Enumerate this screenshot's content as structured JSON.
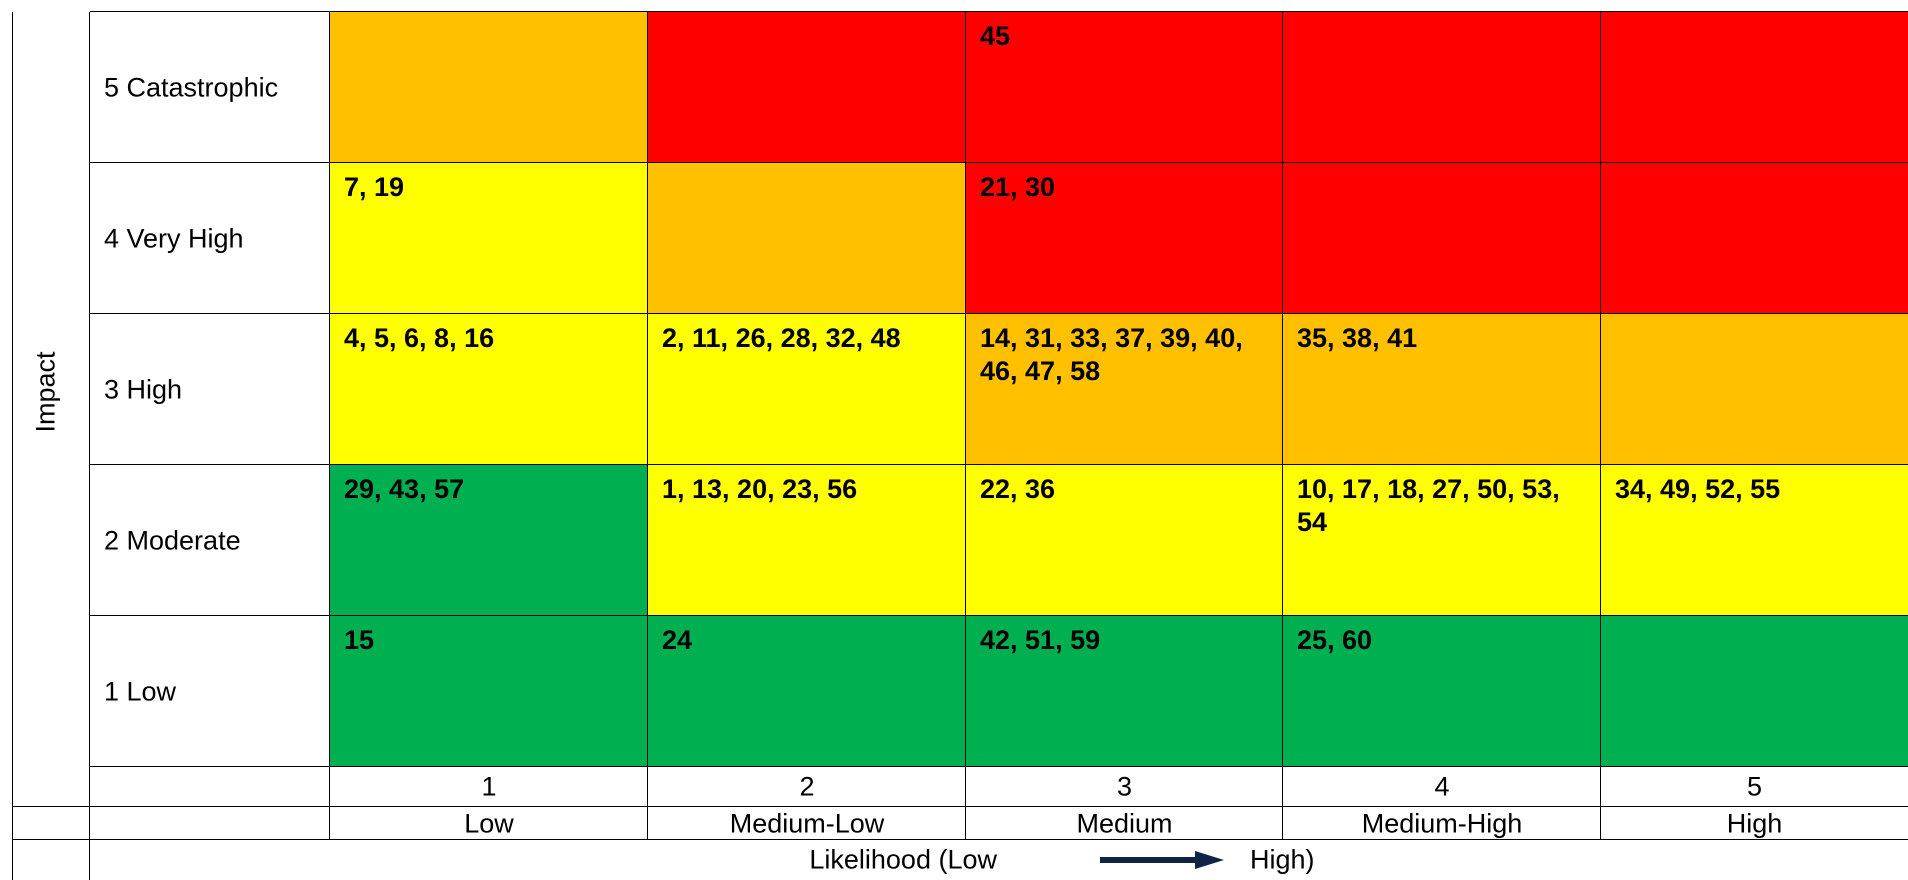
{
  "colors": {
    "red": "#FF0000",
    "orange": "#FFC000",
    "yellow": "#FFFF00",
    "green": "#00B050",
    "arrow": "#0F2346"
  },
  "chart_data": {
    "type": "heatmap",
    "y_axis_label": "Impact",
    "x_axis_label_prefix": "Likelihood (Low",
    "x_axis_label_suffix": "High)",
    "impact_levels": [
      "5 Catastrophic",
      "4 Very High",
      "3 High",
      "2 Moderate",
      "1 Low"
    ],
    "likelihood_numbers": [
      "1",
      "2",
      "3",
      "4",
      "5"
    ],
    "likelihood_levels": [
      "Low",
      "Medium-Low",
      "Medium",
      "Medium-High",
      "High"
    ],
    "cells": [
      [
        "",
        "",
        "45",
        "",
        ""
      ],
      [
        "7, 19",
        "",
        "21, 30",
        "",
        ""
      ],
      [
        "4, 5, 6, 8, 16",
        "2, 11, 26, 28, 32, 48",
        "14, 31, 33, 37, 39, 40, 46, 47, 58",
        "35, 38, 41",
        ""
      ],
      [
        "29, 43, 57",
        "1, 13, 20, 23, 56",
        "22, 36",
        "10, 17, 18, 27, 50, 53, 54",
        "34, 49, 52, 55"
      ],
      [
        "15",
        "24",
        "42, 51, 59",
        "25, 60",
        ""
      ]
    ],
    "cell_colors": [
      [
        "orange",
        "red",
        "red",
        "red",
        "red"
      ],
      [
        "yellow",
        "orange",
        "red",
        "red",
        "red"
      ],
      [
        "yellow",
        "yellow",
        "orange",
        "orange",
        "orange"
      ],
      [
        "green",
        "yellow",
        "yellow",
        "yellow",
        "yellow"
      ],
      [
        "green",
        "green",
        "green",
        "green",
        "green"
      ]
    ]
  }
}
